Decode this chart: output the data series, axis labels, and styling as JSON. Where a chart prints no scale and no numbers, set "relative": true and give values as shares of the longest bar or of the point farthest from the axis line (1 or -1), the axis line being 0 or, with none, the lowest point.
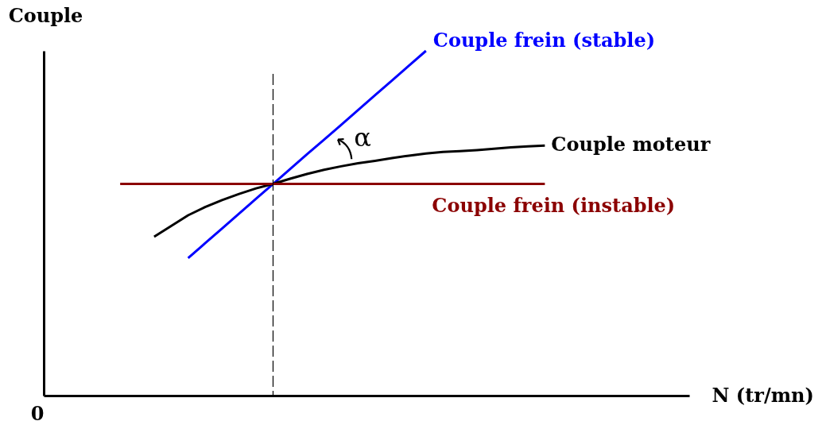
{
  "chart_data": {
    "type": "line",
    "relative": true,
    "xlabel": "N (tr/mn)",
    "ylabel": "Couple",
    "annotations": [
      "α",
      "0"
    ],
    "categories": [
      null,
      null,
      null,
      null,
      null,
      null,
      null,
      null,
      null,
      null,
      null,
      null,
      null,
      null,
      null,
      null,
      null,
      null,
      null,
      null,
      null,
      null,
      null,
      null,
      null,
      null,
      null,
      null,
      null,
      null,
      null,
      null,
      null,
      null,
      null,
      null,
      null,
      null
    ],
    "series": [
      {
        "name": "Couple frein (stable)",
        "color": "#0000ff",
        "values": [
          null,
          null,
          null,
          null,
          null,
          null,
          null,
          null,
          0.399,
          0.442,
          0.485,
          0.528,
          0.571,
          0.614,
          0.657,
          0.7,
          0.742,
          0.785,
          0.828,
          0.871,
          0.914,
          0.957,
          1.0,
          null,
          null,
          null,
          null,
          null,
          null,
          null,
          null,
          null,
          null,
          null,
          null,
          null,
          null,
          null
        ]
      },
      {
        "name": "Couple moteur",
        "color": "#000000",
        "values": [
          null,
          null,
          null,
          null,
          null,
          null,
          0.461,
          0.492,
          0.523,
          0.547,
          0.567,
          0.585,
          0.601,
          0.614,
          0.629,
          0.643,
          0.655,
          0.665,
          0.674,
          0.681,
          0.689,
          0.696,
          0.702,
          0.707,
          0.709,
          0.712,
          0.716,
          0.72,
          0.723,
          0.725,
          null,
          null,
          null,
          null,
          null,
          null,
          null,
          null
        ]
      },
      {
        "name": "Couple frein (instable)",
        "color": "#8b0000",
        "values": [
          null,
          null,
          null,
          null,
          0.614,
          0.614,
          0.614,
          0.614,
          0.614,
          0.614,
          0.614,
          0.614,
          0.614,
          0.614,
          0.614,
          0.614,
          0.614,
          0.614,
          0.614,
          0.614,
          0.614,
          0.614,
          0.614,
          0.614,
          0.614,
          0.614,
          0.614,
          0.614,
          0.614,
          0.614,
          null,
          null,
          null,
          null,
          null,
          null,
          null,
          null
        ]
      }
    ]
  }
}
